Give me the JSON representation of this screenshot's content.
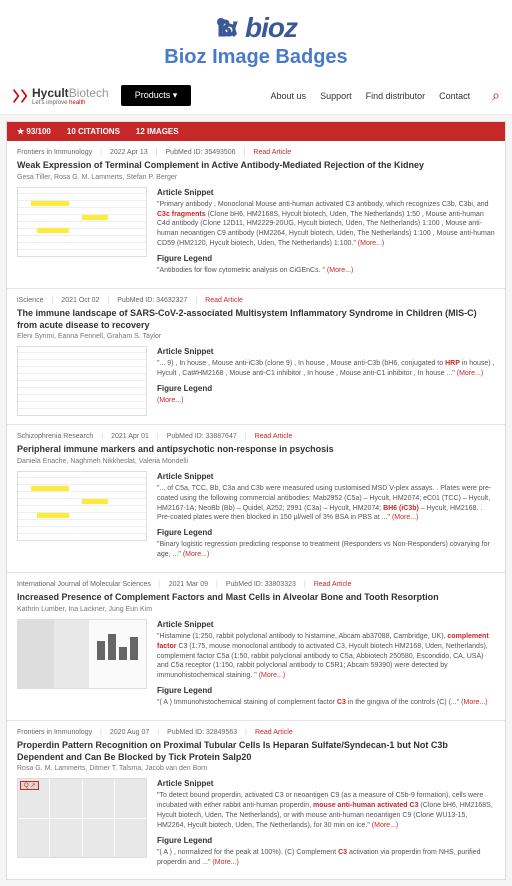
{
  "header": {
    "logo_text": "bioz",
    "subtitle": "Bioz Image Badges",
    "logo_color": "#3b5998",
    "subtitle_color": "#4a7bc8"
  },
  "nav": {
    "company_bio": "Hycult",
    "company_tech": "Biotech",
    "tagline_pre": "Let's improve ",
    "tagline_hl": "health",
    "products": "Products ▾",
    "items": [
      "About us",
      "Support",
      "Find distributor",
      "Contact"
    ]
  },
  "badge": {
    "score": "93/100",
    "citations": "10 CITATIONS",
    "images": "12 IMAGES",
    "bg": "#c62828"
  },
  "articles": [
    {
      "journal": "Frontiers in Immunology",
      "date": "2022 Apr 13",
      "pubmed": "PubMed ID: 35493506",
      "read": "Read Article",
      "title": "Weak Expression of Terminal Complement in Active Antibody-Mediated Rejection of the Kidney",
      "authors": "Gesa Tiller, Rosa G. M. Lammerts, Stefan P. Berger",
      "snippet_label": "Article Snippet",
      "snippet": "\"Primary antibody , Monoclonal Mouse anti-human activated C3 antibody, which recognizes C3b, C3bi, and C3c fragments (Clone bH6, HM2168S, Hycult biotech, Uden, The Netherlands) 1:50 , Mouse anti-human C4d antibody (Clone 12D11, HM2229-20UG, Hycult biotech, Uden, The Netherlands) 1:100 , Mouse anti-human neoantigen C9 antibody (HM2264, Hycult biotech, Uden, The Netherlands) 1:100 , Mouse anti-human CD59 (HM2120, Hycult biotech, Uden, The Netherlands) 1:100.\"",
      "highlight": "C3c fragments",
      "legend_label": "Figure Legend",
      "legend": "\"Antibodies for flow cytometric analysis on CiGEnCs. \"",
      "thumb_type": "text"
    },
    {
      "journal": "iScience",
      "date": "2021 Oct 02",
      "pubmed": "PubMed ID: 34632327",
      "read": "Read Article",
      "title": "The immune landscape of SARS-CoV-2-associated Multisystem Inflammatory Syndrome in Children (MIS-C) from acute disease to recovery",
      "authors": "Eleni Syrimi, Eanna Fennell, Graham S. Taylor",
      "snippet_label": "Article Snippet",
      "snippet": "\"... 9) , In house , Mouse anti-iC3b (clone 9) , In house , Mouse anti-C3b (bH6, conjugated to HRP in house) , Hycult , Cat#HM2168 , Mouse anti-C1 inhibitor , In house , Mouse anti-C1 inhibitor , In house ...\"",
      "highlight": "HRP",
      "legend_label": "Figure Legend",
      "legend": "",
      "thumb_type": "table",
      "tag": "Q ↗"
    },
    {
      "journal": "Schizophrenia Research",
      "date": "2021 Apr 01",
      "pubmed": "PubMed ID: 33887647",
      "read": "Read Article",
      "title": "Peripheral immune markers and antipsychotic non-response in psychosis",
      "authors": "Daniela Enache, Naghmeh Nikkheslat, Valeria Mondelli",
      "snippet_label": "Article Snippet",
      "snippet": "\"... of C5a, TCC, Bb, C3a and C3b were measured using customised MSD V-plex assays. . Plates were pre-coated using the following commercial antibodies: Mab2952 (C5a) – Hycult, HM2074; eC01 (TCC) – Hycult, HM2167-1A; NeoBb (Bb) – Quidel, A252; 2991 (C3a) – Hycult, HM2074; BH6 (iC3b) – Hycult, HM2168. . Pre-coated plates were then blocked in 150 μl/well of 3% BSA in PBS at ...\"",
      "highlight": "BH6 (iC3b)",
      "legend_label": "Figure Legend",
      "legend": "\"Binary logistic regression predicting response to treatment (Responders vs Non-Responders) covarying for age, ...\"",
      "thumb_type": "text"
    },
    {
      "journal": "International Journal of Molecular Sciences",
      "date": "2021 Mar 09",
      "pubmed": "PubMed ID: 33803323",
      "read": "Read Article",
      "title": "Increased Presence of Complement Factors and Mast Cells in Alveolar Bone and Tooth Resorption",
      "authors": "Kathrin Lumber, Ina Lackner, Jung Eun Kim",
      "snippet_label": "Article Snippet",
      "snippet": "\"Histamine (1:250, rabbit polyclonal antibody to histamine, Abcam ab37088, Cambridge, UK), complement factor C3 (1:75, mouse monoclonal antibody to activated C3, Hycult biotech HM2168, Uden, Netherlands), complement factor C5a (1:50, rabbit polyclonal antibody to C5a, Abbiotech 250580, Escondido, CA, USA) and C5a receptor (1:150, rabbit polyclonal antibody to C5R1; Abcam 59390) were detected by immunohistochemical staining. \"",
      "highlight": "complement factor",
      "legend_label": "Figure Legend",
      "legend": "\"( A ) Immunohistochemical staining of complement factor C3 in the gingiva of the controls (C) (...\"",
      "thumb_type": "bars"
    },
    {
      "journal": "Frontiers in Immunology",
      "date": "2020 Aug 07",
      "pubmed": "PubMed ID: 32849563",
      "read": "Read Article",
      "title": "Properdin Pattern Recognition on Proximal Tubular Cells Is Heparan Sulfate/Syndecan-1 but Not C3b Dependent and Can Be Blocked by Tick Protein Salp20",
      "authors": "Rosa G. M. Lammerts, Ditmer T. Talsma, Jacob van den Born",
      "snippet_label": "Article Snippet",
      "snippet": "\"To detect bound properdin, activated C3 or neoantigen C9 (as a measure of C5b-9 formation), cells were incubated with either rabbit anti-human properdin, mouse anti-human activated C3 (Clone bH6, HM2168S, Hycult biotech, Uden, The Netherlands), or with mouse anti-human neoantigen C9 (Clone WU13-15, HM2264, Hycult biotech, Uden, The Netherlands), for 30 min on ice.\"",
      "highlight": "mouse anti-human activated C3",
      "legend_label": "Figure Legend",
      "legend": "\"( A ) , normalized for the peak at 100%). (C) Complement C3 activation via properdin from NHS, purified properdin and ...\"",
      "thumb_type": "charts",
      "tag": "Q ↗"
    }
  ],
  "more": "(More...)"
}
